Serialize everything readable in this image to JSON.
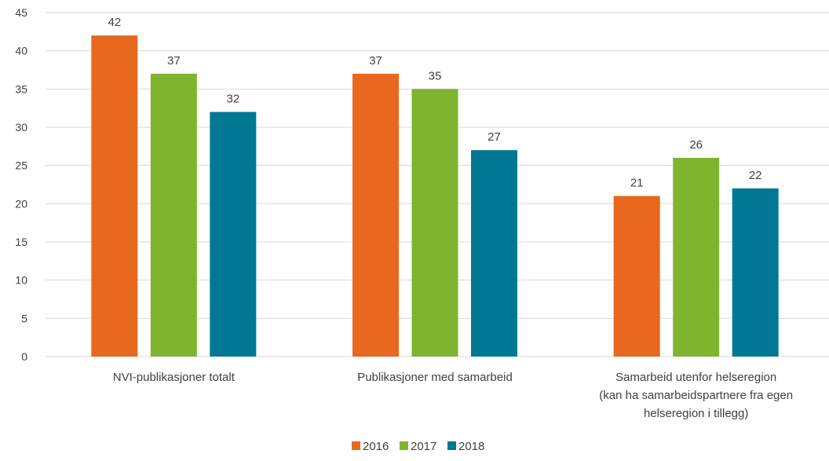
{
  "chart_data": {
    "type": "bar",
    "categories": [
      [
        "NVI-publikasjoner totalt"
      ],
      [
        "Publikasjoner med samarbeid"
      ],
      [
        "Samarbeid utenfor helseregion",
        "(kan ha samarbeidspartnere fra egen",
        "helseregion i tillegg)"
      ]
    ],
    "series": [
      {
        "name": "2016",
        "color": "#e8681e",
        "values": [
          42,
          37,
          21
        ]
      },
      {
        "name": "2017",
        "color": "#7fb52e",
        "values": [
          37,
          35,
          26
        ]
      },
      {
        "name": "2018",
        "color": "#007893",
        "values": [
          32,
          27,
          22
        ]
      }
    ],
    "ylim": [
      0,
      45
    ],
    "yticks": [
      "0",
      "5",
      "10",
      "15",
      "20",
      "25",
      "30",
      "35",
      "40",
      "45"
    ],
    "grid": true,
    "legend_position": "bottom"
  }
}
